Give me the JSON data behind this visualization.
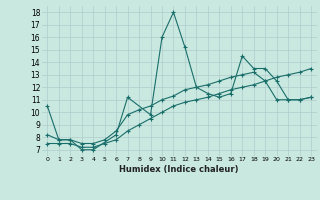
{
  "xlabel": "Humidex (Indice chaleur)",
  "background_color": "#c8e8e0",
  "grid_color": "#b0cccc",
  "line_color": "#1a6e6a",
  "xlim": [
    -0.5,
    23.5
  ],
  "ylim": [
    6.5,
    18.5
  ],
  "xticks": [
    0,
    1,
    2,
    3,
    4,
    5,
    6,
    7,
    8,
    9,
    10,
    11,
    12,
    13,
    14,
    15,
    16,
    17,
    18,
    19,
    20,
    21,
    22,
    23
  ],
  "yticks": [
    7,
    8,
    9,
    10,
    11,
    12,
    13,
    14,
    15,
    16,
    17,
    18
  ],
  "series1_x": [
    0,
    1,
    2,
    3,
    4,
    6,
    7,
    9,
    10,
    11,
    12,
    13,
    14,
    15,
    16,
    17,
    18,
    19,
    20,
    21,
    22,
    23
  ],
  "series1_y": [
    10.5,
    7.8,
    7.8,
    7.0,
    7.0,
    8.2,
    11.2,
    9.8,
    16.0,
    18.0,
    15.2,
    12.0,
    11.5,
    11.2,
    11.5,
    14.5,
    13.5,
    13.5,
    12.5,
    11.0,
    11.0,
    11.2
  ],
  "series2_x": [
    0,
    1,
    2,
    3,
    4,
    5,
    6,
    7,
    8,
    9,
    10,
    11,
    12,
    13,
    14,
    15,
    16,
    17,
    18,
    19,
    20,
    21,
    22,
    23
  ],
  "series2_y": [
    8.2,
    7.8,
    7.8,
    7.5,
    7.5,
    7.8,
    8.5,
    9.8,
    10.2,
    10.5,
    11.0,
    11.3,
    11.8,
    12.0,
    12.2,
    12.5,
    12.8,
    13.0,
    13.2,
    12.5,
    11.0,
    11.0,
    11.0,
    11.2
  ],
  "series3_x": [
    0,
    1,
    2,
    3,
    4,
    5,
    6,
    7,
    8,
    9,
    10,
    11,
    12,
    13,
    14,
    15,
    16,
    17,
    18,
    19,
    20,
    21,
    22,
    23
  ],
  "series3_y": [
    7.5,
    7.5,
    7.5,
    7.2,
    7.2,
    7.5,
    7.8,
    8.5,
    9.0,
    9.5,
    10.0,
    10.5,
    10.8,
    11.0,
    11.2,
    11.5,
    11.8,
    12.0,
    12.2,
    12.5,
    12.8,
    13.0,
    13.2,
    13.5
  ]
}
